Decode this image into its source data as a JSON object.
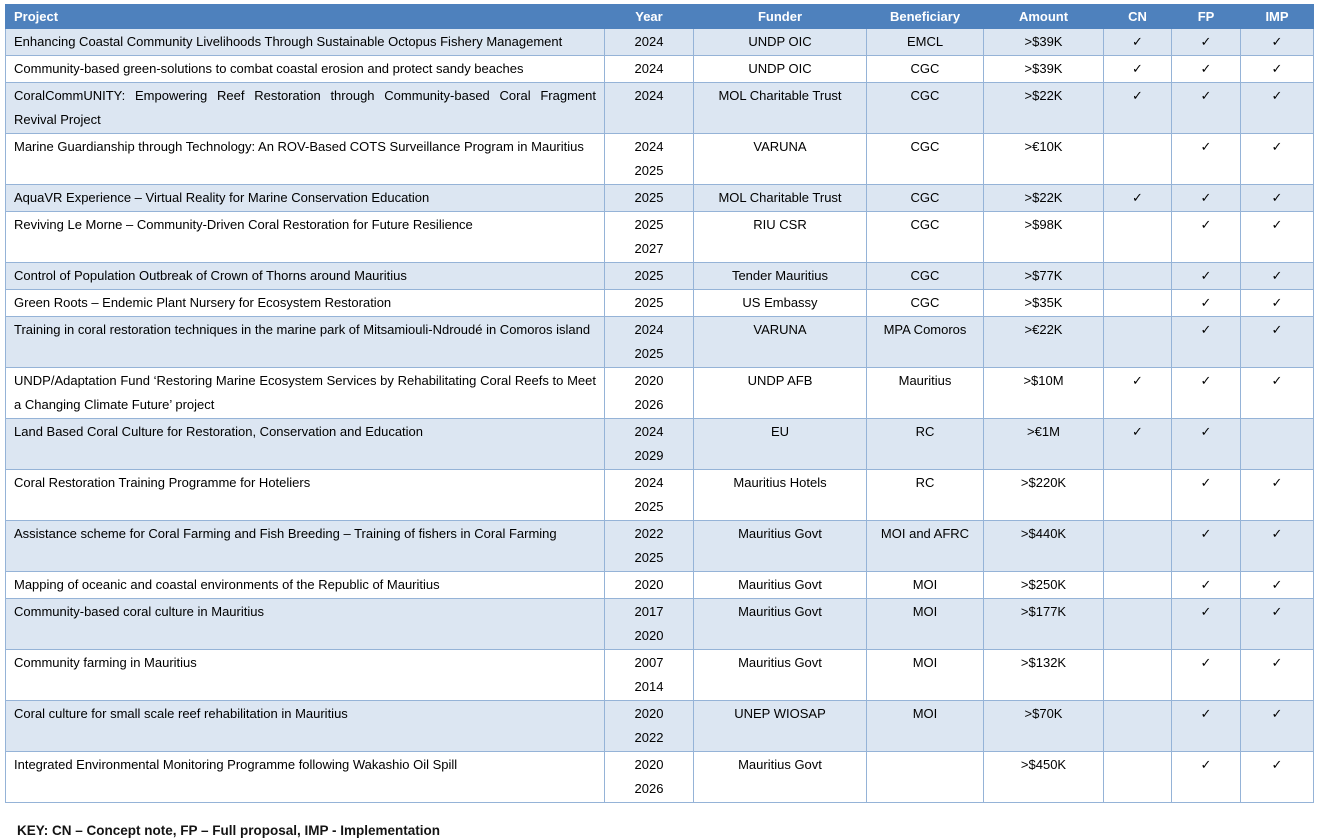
{
  "colors": {
    "header_bg": "#4e81bd",
    "header_text": "#ffffff",
    "row_alt_bg": "#dce6f2",
    "border": "#95b3d7"
  },
  "table": {
    "check_glyph": "✓",
    "columns": [
      {
        "key": "project",
        "label": "Project"
      },
      {
        "key": "year",
        "label": "Year"
      },
      {
        "key": "funder",
        "label": "Funder"
      },
      {
        "key": "beneficiary",
        "label": "Beneficiary"
      },
      {
        "key": "amount",
        "label": "Amount"
      },
      {
        "key": "cn",
        "label": "CN"
      },
      {
        "key": "fp",
        "label": "FP"
      },
      {
        "key": "imp",
        "label": "IMP"
      }
    ],
    "rows": [
      {
        "project": "Enhancing Coastal Community Livelihoods Through Sustainable Octopus Fishery Management",
        "years": [
          "2024"
        ],
        "funder": "UNDP OIC",
        "beneficiary": "EMCL",
        "amount": ">$39K",
        "cn": true,
        "fp": true,
        "imp": true
      },
      {
        "project": "Community-based green-solutions to combat coastal erosion and protect sandy beaches",
        "years": [
          "2024"
        ],
        "funder": "UNDP OIC",
        "beneficiary": "CGC",
        "amount": ">$39K",
        "cn": true,
        "fp": true,
        "imp": true
      },
      {
        "project": "CoralCommUNITY: Empowering Reef Restoration through Community-based Coral Fragment Revival Project",
        "years": [
          "2024"
        ],
        "funder": "MOL Charitable Trust",
        "beneficiary": "CGC",
        "amount": ">$22K",
        "cn": true,
        "fp": true,
        "imp": true
      },
      {
        "project": "Marine Guardianship through Technology: An ROV-Based COTS Surveillance Program in Mauritius",
        "years": [
          "2024",
          "2025"
        ],
        "funder": "VARUNA",
        "beneficiary": "CGC",
        "amount": ">€10K",
        "cn": false,
        "fp": true,
        "imp": true
      },
      {
        "project": "AquaVR Experience – Virtual Reality for Marine Conservation Education",
        "years": [
          "2025"
        ],
        "funder": "MOL Charitable Trust",
        "beneficiary": "CGC",
        "amount": ">$22K",
        "cn": true,
        "fp": true,
        "imp": true
      },
      {
        "project": "Reviving Le Morne – Community-Driven Coral Restoration for Future Resilience",
        "years": [
          "2025",
          "2027"
        ],
        "funder": "RIU CSR",
        "beneficiary": "CGC",
        "amount": ">$98K",
        "cn": false,
        "fp": true,
        "imp": true
      },
      {
        "project": "Control of Population Outbreak of Crown of Thorns around Mauritius",
        "years": [
          "2025"
        ],
        "funder": "Tender Mauritius",
        "beneficiary": "CGC",
        "amount": ">$77K",
        "cn": false,
        "fp": true,
        "imp": true
      },
      {
        "project": "Green Roots – Endemic Plant Nursery for Ecosystem Restoration",
        "years": [
          "2025"
        ],
        "funder": "US Embassy",
        "beneficiary": "CGC",
        "amount": ">$35K",
        "cn": false,
        "fp": true,
        "imp": true
      },
      {
        "project": "Training in coral restoration techniques in the marine park of Mitsamiouli-Ndroudé in Comoros island",
        "years": [
          "2024",
          "2025"
        ],
        "funder": "VARUNA",
        "beneficiary": "MPA Comoros",
        "amount": ">€22K",
        "cn": false,
        "fp": true,
        "imp": true
      },
      {
        "project": "UNDP/Adaptation Fund ‘Restoring Marine Ecosystem Services by Rehabilitating Coral Reefs to Meet a Changing Climate Future’ project",
        "years": [
          "2020",
          "2026"
        ],
        "funder": "UNDP AFB",
        "beneficiary": "Mauritius",
        "amount": ">$10M",
        "cn": true,
        "fp": true,
        "imp": true
      },
      {
        "project": "Land Based Coral Culture for Restoration, Conservation and Education",
        "years": [
          "2024",
          "2029"
        ],
        "funder": "EU",
        "beneficiary": "RC",
        "amount": ">€1M",
        "cn": true,
        "fp": true,
        "imp": false
      },
      {
        "project": "Coral Restoration Training Programme for Hoteliers",
        "years": [
          "2024",
          "2025"
        ],
        "funder": "Mauritius Hotels",
        "beneficiary": "RC",
        "amount": ">$220K",
        "cn": false,
        "fp": true,
        "imp": true
      },
      {
        "project": "Assistance scheme for Coral Farming and Fish Breeding – Training of fishers in Coral Farming",
        "years": [
          "2022",
          "2025"
        ],
        "funder": "Mauritius Govt",
        "beneficiary": "MOI and AFRC",
        "amount": ">$440K",
        "cn": false,
        "fp": true,
        "imp": true
      },
      {
        "project": "Mapping of oceanic and coastal environments of the Republic of Mauritius",
        "years": [
          "2020"
        ],
        "funder": "Mauritius Govt",
        "beneficiary": "MOI",
        "amount": ">$250K",
        "cn": false,
        "fp": true,
        "imp": true
      },
      {
        "project": "Community-based coral culture in Mauritius",
        "years": [
          "2017",
          "2020"
        ],
        "funder": "Mauritius Govt",
        "beneficiary": "MOI",
        "amount": ">$177K",
        "cn": false,
        "fp": true,
        "imp": true
      },
      {
        "project": "Community farming in Mauritius",
        "years": [
          "2007",
          "2014"
        ],
        "funder": "Mauritius Govt",
        "beneficiary": "MOI",
        "amount": ">$132K",
        "cn": false,
        "fp": true,
        "imp": true
      },
      {
        "project": "Coral culture for small scale reef rehabilitation in Mauritius",
        "years": [
          "2020",
          "2022"
        ],
        "funder": "UNEP WIOSAP",
        "beneficiary": "MOI",
        "amount": ">$70K",
        "cn": false,
        "fp": true,
        "imp": true
      },
      {
        "project": "Integrated Environmental Monitoring Programme following Wakashio Oil Spill",
        "years": [
          "2020",
          "2026"
        ],
        "funder": "Mauritius Govt",
        "beneficiary": "",
        "amount": ">$450K",
        "cn": false,
        "fp": true,
        "imp": true
      }
    ]
  },
  "footer": {
    "key_text": "KEY: CN – Concept note, FP – Full proposal, IMP - Implementation"
  }
}
